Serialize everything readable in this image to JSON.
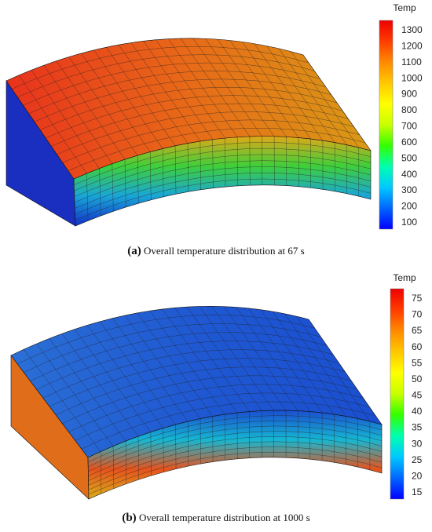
{
  "panels": [
    {
      "id": "a",
      "colorbar_title": "Temp",
      "colorbar_ticks": [
        "1300",
        "1200",
        "1100",
        "1000",
        "900",
        "800",
        "700",
        "600",
        "500",
        "400",
        "300",
        "200",
        "100"
      ],
      "caption_tag": "(a)",
      "caption_text": "Overall temperature distribution at 67 s",
      "top_face_gradient": [
        "#e8321c",
        "#e86a18",
        "#d99a16"
      ],
      "inner_face_gradient": [
        "#e0a818",
        "#3fcf3a",
        "#19a6d8",
        "#1131c8"
      ],
      "end_face_color": "#1a2fc0"
    },
    {
      "id": "b",
      "colorbar_title": "Temp",
      "colorbar_ticks": [
        "75",
        "70",
        "65",
        "60",
        "55",
        "50",
        "45",
        "40",
        "35",
        "30",
        "25",
        "20",
        "15"
      ],
      "caption_tag": "(b)",
      "caption_text": "Overall temperature distribution at 1000 s",
      "top_face_gradient": [
        "#2b6fd6",
        "#1f58d2",
        "#1a4ed0"
      ],
      "inner_face_gradient": [
        "#1a4ed0",
        "#16b7d2",
        "#e7531c",
        "#d9b01a"
      ],
      "end_face_color": "#e06d1a"
    }
  ],
  "colorbar_colors": [
    "#0000ff",
    "#0066ff",
    "#00c8ff",
    "#00ffb0",
    "#33ff00",
    "#c8ff00",
    "#ffff00",
    "#ffc800",
    "#ff8a00",
    "#ff3c00",
    "#ee0000"
  ]
}
